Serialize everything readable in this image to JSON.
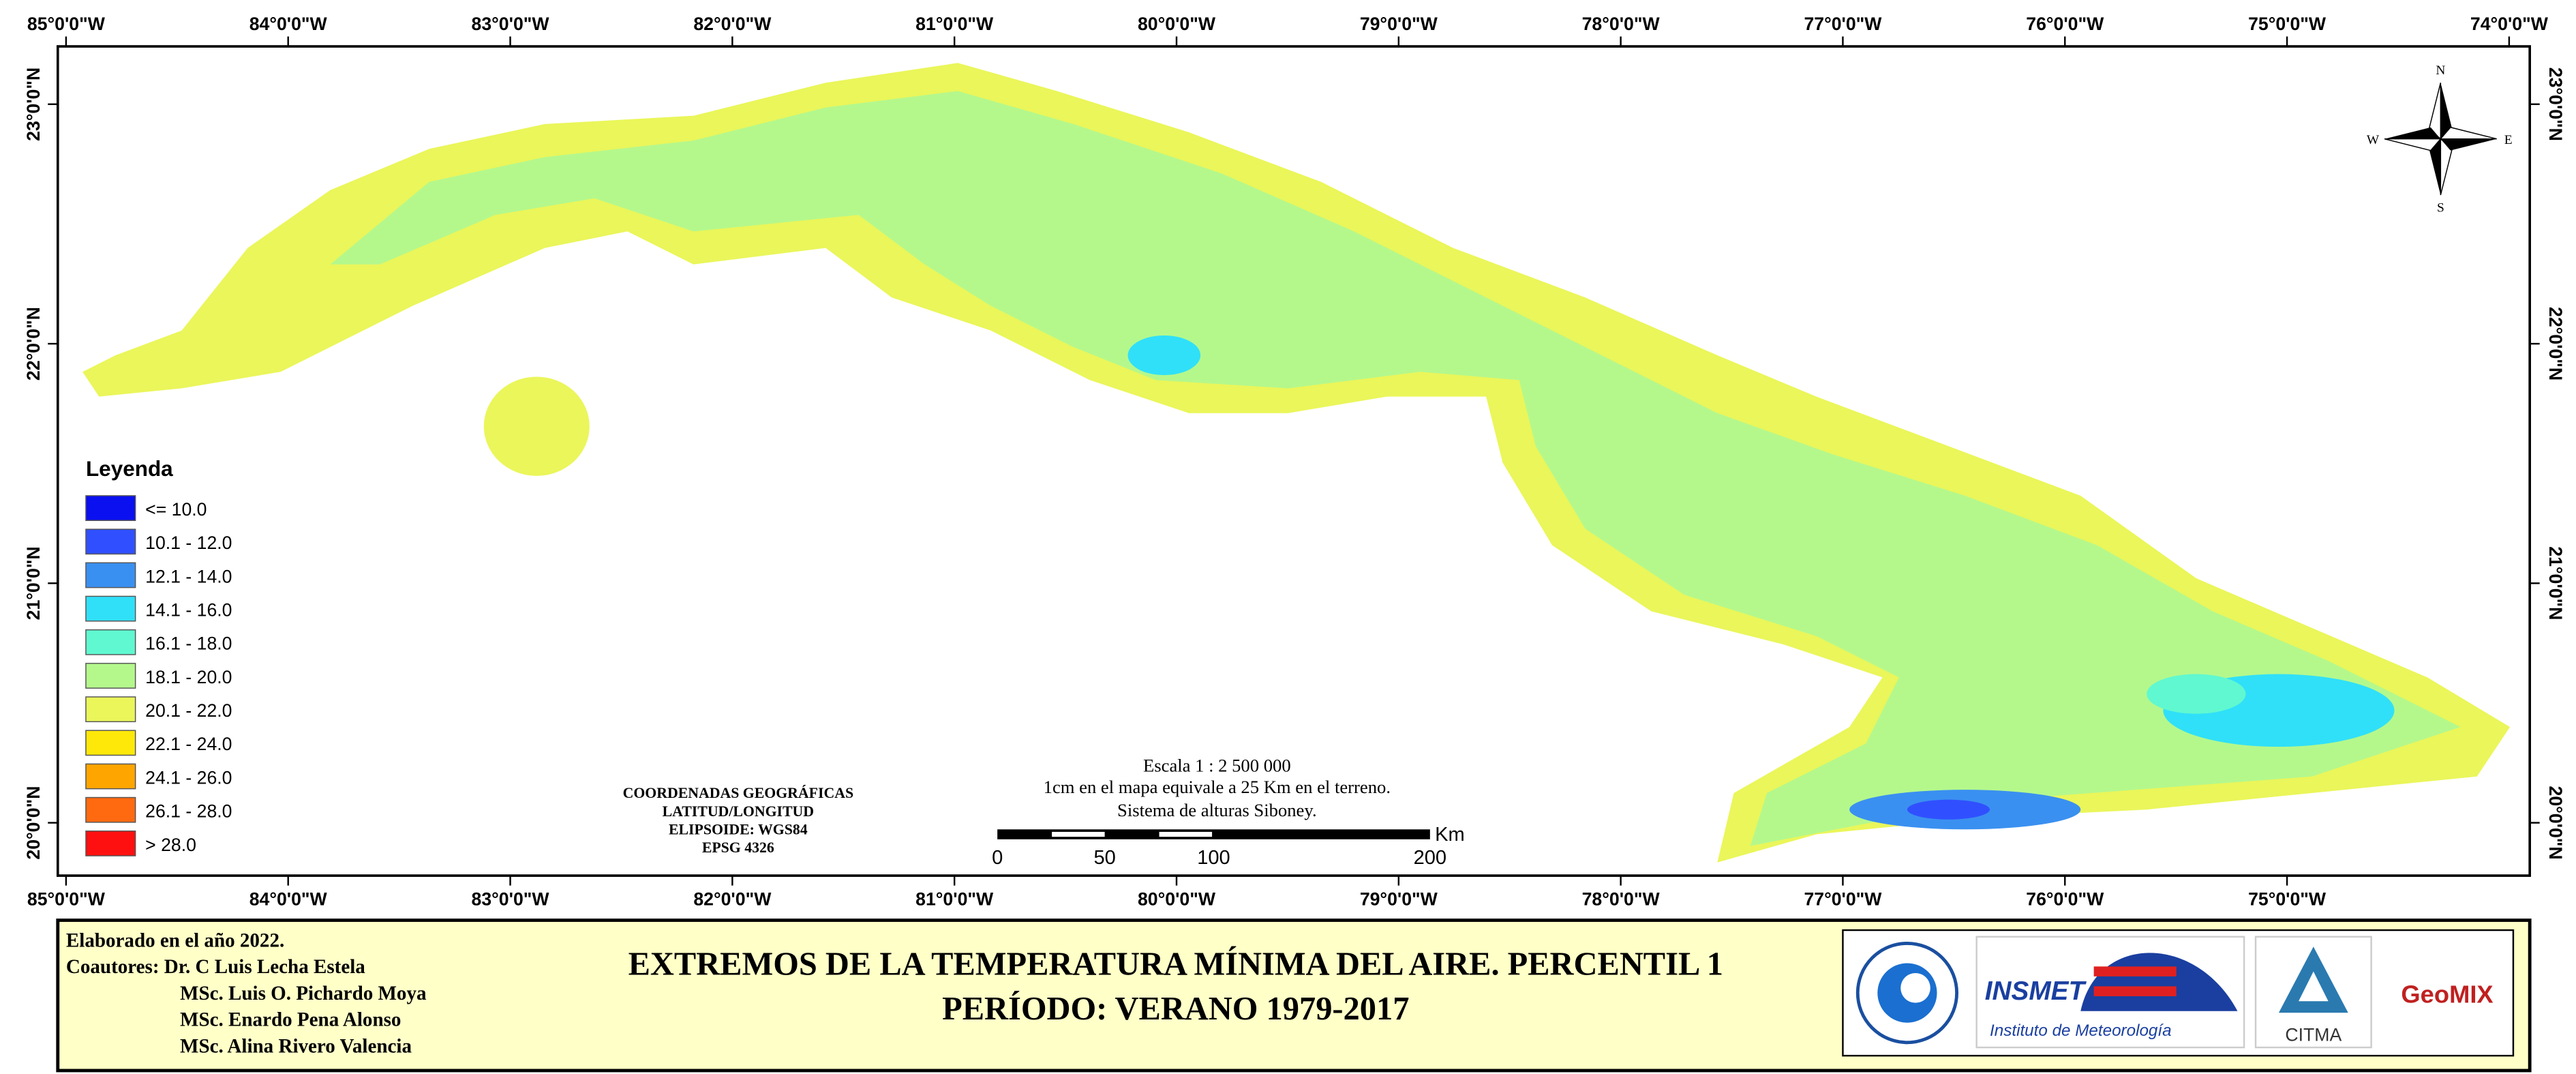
{
  "map": {
    "graticule": {
      "longitudes": [
        "85°0'0\"W",
        "84°0'0\"W",
        "83°0'0\"W",
        "82°0'0\"W",
        "81°0'0\"W",
        "80°0'0\"W",
        "79°0'0\"W",
        "78°0'0\"W",
        "77°0'0\"W",
        "76°0'0\"W",
        "75°0'0\"W",
        "74°0'0\"W"
      ],
      "latitudes": [
        "23°0'0\"N",
        "22°0'0\"N",
        "21°0'0\"N",
        "20°0'0\"N"
      ]
    },
    "legend": {
      "title": "Leyenda",
      "items": [
        {
          "label": "<= 10.0",
          "color": "#0a10f0"
        },
        {
          "label": "10.1 - 12.0",
          "color": "#3050ff"
        },
        {
          "label": "12.1 - 14.0",
          "color": "#3a90f0"
        },
        {
          "label": "14.1 - 16.0",
          "color": "#30e0f8"
        },
        {
          "label": "16.1 - 18.0",
          "color": "#60f8d0"
        },
        {
          "label": "18.1 - 20.0",
          "color": "#b4f88c"
        },
        {
          "label": "20.1 - 22.0",
          "color": "#eaf65a"
        },
        {
          "label": "22.1 - 24.0",
          "color": "#fde80a"
        },
        {
          "label": "24.1 - 26.0",
          "color": "#ffa500"
        },
        {
          "label": "26.1 - 28.0",
          "color": "#ff6a10"
        },
        {
          "label": "> 28.0",
          "color": "#ff1010"
        }
      ]
    },
    "north_arrow": {
      "n": "N",
      "s": "S",
      "e": "E",
      "w": "W"
    },
    "scale": {
      "text": [
        "Escala 1 : 2 500 000",
        "1cm en el mapa equivale a 25 Km en el terreno.",
        "Sistema de alturas Siboney."
      ],
      "ticks": [
        "0",
        "50",
        "100",
        "200"
      ],
      "unit": "Km"
    },
    "coordinates": [
      "COORDENADAS GEOGRÁFICAS",
      "LATITUD/LONGITUD",
      "ELIPSOIDE: WGS84",
      "EPSG 4326"
    ]
  },
  "footer": {
    "credits": [
      "Elaborado en el año 2022.",
      "Coautores: Dr. C Luis Lecha Estela",
      "MSc. Luis O. Pichardo Moya",
      "MSc. Enardo Pena Alonso",
      "MSc. Alina Rivero Valencia"
    ],
    "title": [
      "EXTREMOS DE LA TEMPERATURA MÍNIMA DEL AIRE. PERCENTIL 1",
      "PERÍODO: VERANO 1979-2017"
    ],
    "logos": [
      "INSMET",
      "Instituto de Meteorología",
      "CITMA",
      "GeoMIX"
    ]
  }
}
